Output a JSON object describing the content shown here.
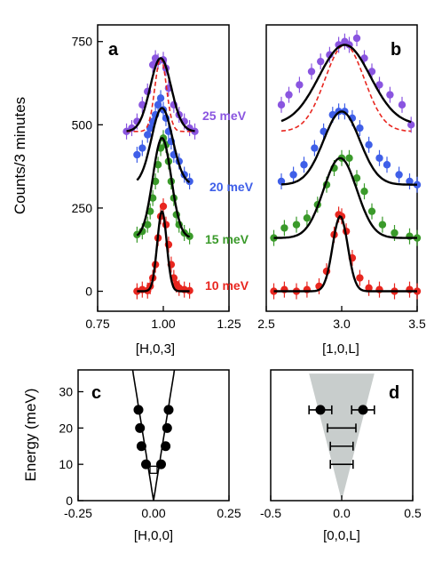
{
  "chart_data": [
    {
      "panel": "a",
      "type": "scatter",
      "xlabel": "[H,0,3]",
      "ylabel": "Counts/3 minutes",
      "xlim": [
        0.75,
        1.25
      ],
      "ylim": [
        -60,
        800
      ],
      "xticks": [
        "0.75",
        "1.00",
        "1.25"
      ],
      "yticks": [
        "0",
        "250",
        "500",
        "750"
      ],
      "series": [
        {
          "name": "10 meV",
          "color": "#e8261f",
          "points": [
            [
              0.9,
              0
            ],
            [
              0.92,
              5
            ],
            [
              0.94,
              2
            ],
            [
              0.95,
              15
            ],
            [
              0.96,
              40
            ],
            [
              0.97,
              80
            ],
            [
              0.98,
              160
            ],
            [
              0.99,
              225
            ],
            [
              1.0,
              255
            ],
            [
              1.01,
              200
            ],
            [
              1.02,
              140
            ],
            [
              1.03,
              80
            ],
            [
              1.04,
              40
            ],
            [
              1.05,
              20
            ],
            [
              1.06,
              10
            ],
            [
              1.08,
              5
            ],
            [
              1.1,
              2
            ]
          ],
          "fit": {
            "base": 0,
            "amp": 240,
            "center": 0.995,
            "sigma": 0.018
          }
        },
        {
          "name": "15 meV",
          "color": "#3a9a2a",
          "points": [
            [
              0.9,
              170
            ],
            [
              0.92,
              180
            ],
            [
              0.94,
              200
            ],
            [
              0.95,
              240
            ],
            [
              0.96,
              280
            ],
            [
              0.97,
              330
            ],
            [
              0.98,
              380
            ],
            [
              0.99,
              430
            ],
            [
              1.0,
              460
            ],
            [
              1.01,
              440
            ],
            [
              1.02,
              390
            ],
            [
              1.03,
              330
            ],
            [
              1.04,
              280
            ],
            [
              1.05,
              230
            ],
            [
              1.06,
              200
            ],
            [
              1.08,
              175
            ],
            [
              1.1,
              165
            ]
          ],
          "fit": {
            "base": 160,
            "amp": 300,
            "center": 0.995,
            "sigma": 0.035
          }
        },
        {
          "name": "20 meV",
          "color": "#3f5fe8",
          "points": [
            [
              0.9,
              410
            ],
            [
              0.92,
              430
            ],
            [
              0.94,
              470
            ],
            [
              0.95,
              490
            ],
            [
              0.96,
              510
            ],
            [
              0.97,
              530
            ],
            [
              0.98,
              560
            ],
            [
              0.99,
              580
            ],
            [
              1.0,
              545
            ],
            [
              1.01,
              520
            ],
            [
              1.02,
              480
            ],
            [
              1.03,
              450
            ],
            [
              1.04,
              410
            ],
            [
              1.06,
              390
            ],
            [
              1.08,
              350
            ],
            [
              1.1,
              330
            ]
          ],
          "fit": {
            "base": 320,
            "amp": 230,
            "center": 0.995,
            "sigma": 0.04
          }
        },
        {
          "name": "25 meV",
          "color": "#8a55e0",
          "points": [
            [
              0.86,
              480
            ],
            [
              0.88,
              490
            ],
            [
              0.9,
              510
            ],
            [
              0.92,
              560
            ],
            [
              0.94,
              600
            ],
            [
              0.96,
              680
            ],
            [
              0.97,
              700
            ],
            [
              0.98,
              690
            ],
            [
              1.0,
              695
            ],
            [
              1.01,
              670
            ],
            [
              1.02,
              610
            ],
            [
              1.04,
              560
            ],
            [
              1.06,
              530
            ],
            [
              1.08,
              510
            ],
            [
              1.1,
              490
            ],
            [
              1.12,
              480
            ]
          ],
          "fit": {
            "base": 480,
            "amp": 220,
            "center": 0.99,
            "sigma": 0.04
          },
          "dashed": {
            "base": 480,
            "amp": 220,
            "center": 0.99,
            "sigma": 0.022
          }
        }
      ]
    },
    {
      "panel": "b",
      "type": "scatter",
      "xlabel": "[1,0,L]",
      "xlim": [
        2.5,
        3.5
      ],
      "ylim": [
        -60,
        800
      ],
      "xticks": [
        "2.5",
        "3.0",
        "3.5"
      ],
      "series": [
        {
          "name": "10 meV",
          "color": "#e8261f",
          "points": [
            [
              2.55,
              0
            ],
            [
              2.62,
              5
            ],
            [
              2.7,
              0
            ],
            [
              2.77,
              5
            ],
            [
              2.85,
              15
            ],
            [
              2.9,
              60
            ],
            [
              2.95,
              170
            ],
            [
              2.98,
              230
            ],
            [
              3.0,
              225
            ],
            [
              3.03,
              180
            ],
            [
              3.07,
              100
            ],
            [
              3.12,
              40
            ],
            [
              3.18,
              10
            ],
            [
              3.25,
              5
            ],
            [
              3.35,
              0
            ],
            [
              3.45,
              5
            ],
            [
              3.5,
              0
            ]
          ],
          "fit": {
            "base": 0,
            "amp": 225,
            "center": 2.99,
            "sigma": 0.05
          }
        },
        {
          "name": "15 meV",
          "color": "#3a9a2a",
          "points": [
            [
              2.55,
              160
            ],
            [
              2.62,
              190
            ],
            [
              2.7,
              200
            ],
            [
              2.77,
              220
            ],
            [
              2.84,
              260
            ],
            [
              2.9,
              320
            ],
            [
              2.95,
              370
            ],
            [
              3.0,
              400
            ],
            [
              3.05,
              400
            ],
            [
              3.1,
              340
            ],
            [
              3.15,
              300
            ],
            [
              3.2,
              240
            ],
            [
              3.27,
              200
            ],
            [
              3.35,
              175
            ],
            [
              3.45,
              165
            ],
            [
              3.5,
              160
            ]
          ],
          "fit": {
            "base": 160,
            "amp": 240,
            "center": 2.99,
            "sigma": 0.11
          }
        },
        {
          "name": "20 meV",
          "color": "#3f5fe8",
          "points": [
            [
              2.6,
              330
            ],
            [
              2.68,
              350
            ],
            [
              2.75,
              380
            ],
            [
              2.82,
              430
            ],
            [
              2.88,
              480
            ],
            [
              2.94,
              530
            ],
            [
              2.98,
              540
            ],
            [
              3.02,
              540
            ],
            [
              3.07,
              520
            ],
            [
              3.12,
              490
            ],
            [
              3.18,
              440
            ],
            [
              3.25,
              400
            ],
            [
              3.3,
              380
            ],
            [
              3.38,
              350
            ],
            [
              3.45,
              330
            ],
            [
              3.5,
              320
            ]
          ],
          "fit": {
            "base": 320,
            "amp": 220,
            "center": 3.0,
            "sigma": 0.12
          }
        },
        {
          "name": "25 meV",
          "color": "#8a55e0",
          "points": [
            [
              2.6,
              560
            ],
            [
              2.65,
              590
            ],
            [
              2.72,
              620
            ],
            [
              2.8,
              660
            ],
            [
              2.86,
              690
            ],
            [
              2.92,
              710
            ],
            [
              2.98,
              740
            ],
            [
              3.02,
              750
            ],
            [
              3.05,
              740
            ],
            [
              3.1,
              760
            ],
            [
              3.15,
              700
            ],
            [
              3.2,
              660
            ],
            [
              3.25,
              620
            ],
            [
              3.32,
              590
            ],
            [
              3.4,
              560
            ],
            [
              3.46,
              500
            ]
          ],
          "fit": {
            "base": 500,
            "amp": 240,
            "center": 3.02,
            "sigma": 0.17
          },
          "dashed": {
            "base": 480,
            "amp": 260,
            "center": 3.02,
            "sigma": 0.13
          }
        }
      ]
    },
    {
      "panel": "c",
      "type": "scatter",
      "xlabel": "[H,0,0]",
      "ylabel": "Energy (meV)",
      "xlim": [
        -0.25,
        0.25
      ],
      "ylim": [
        0,
        36
      ],
      "xticks": [
        "-0.25",
        "0.00",
        "0.25"
      ],
      "yticks": [
        "0",
        "10",
        "20",
        "30"
      ],
      "points": [
        [
          -0.05,
          25
        ],
        [
          0.05,
          25
        ],
        [
          -0.045,
          20
        ],
        [
          0.045,
          20
        ],
        [
          -0.04,
          15
        ],
        [
          0.04,
          15
        ],
        [
          -0.025,
          10
        ],
        [
          0.025,
          10
        ]
      ],
      "open_point": [
        0.0,
        8.5
      ],
      "curve": {
        "velocity": 520
      }
    },
    {
      "panel": "d",
      "type": "scatter",
      "xlabel": "[0,0,L]",
      "xlim": [
        -0.5,
        0.5
      ],
      "ylim": [
        0,
        36
      ],
      "xticks": [
        "-0.5",
        "0.0",
        "0.5"
      ],
      "points": [
        [
          -0.15,
          25
        ],
        [
          0.15,
          25
        ]
      ],
      "error_bars": [
        {
          "x": -0.15,
          "y": 25,
          "err": 0.08
        },
        {
          "x": 0.15,
          "y": 25,
          "err": 0.08
        },
        {
          "x": 0.0,
          "y": 20,
          "err": 0.1
        },
        {
          "x": 0.0,
          "y": 15,
          "err": 0.08
        },
        {
          "x": 0.0,
          "y": 10,
          "err": 0.08
        }
      ],
      "shade": {
        "color": "#c8cdcc",
        "apex": [
          0.0,
          0.0
        ],
        "top_left": [
          -0.23,
          35
        ],
        "top_right": [
          0.23,
          35
        ]
      }
    }
  ],
  "series_labels": [
    {
      "text": "25 meV",
      "color": "#8a55e0"
    },
    {
      "text": "20 meV",
      "color": "#3f5fe8"
    },
    {
      "text": "15 meV",
      "color": "#3a9a2a"
    },
    {
      "text": "10 meV",
      "color": "#e8261f"
    }
  ],
  "panel_labels": [
    "a",
    "b",
    "c",
    "d"
  ],
  "axis_color": "#000000",
  "fit_color": "#000000",
  "dashed_color": "#e8261f"
}
